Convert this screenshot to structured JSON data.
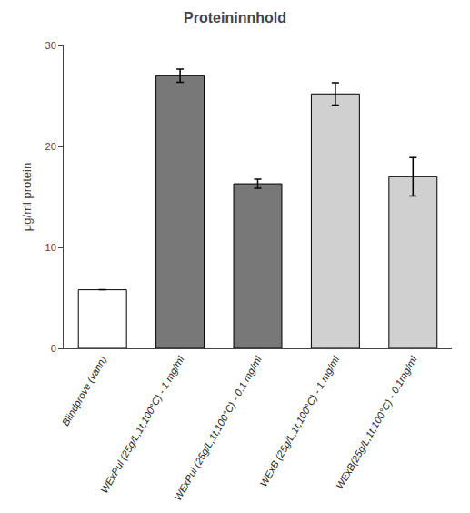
{
  "chart_data": {
    "type": "bar",
    "title": "Proteininnhold",
    "ylabel": "μg/ml protein",
    "categories": [
      "Blindprove (vann)",
      "WExPul (25g/L,1t,100°C) - 1 mg/ml",
      "WExPul (25g/L,1t,100°C) - 0.1 mg/ml",
      "WExB (25g/L,1t,100°C) - 1 mg/ml",
      "WExB(25g/L,1t,100°C) - 0.1mg/ml"
    ],
    "values": [
      5.8,
      27.0,
      16.3,
      25.2,
      17.0
    ],
    "errors": [
      0.0,
      0.65,
      0.45,
      1.1,
      1.9
    ],
    "colors": [
      "#ffffff",
      "#787878",
      "#787878",
      "#d0d0d0",
      "#d0d0d0"
    ],
    "ylim": [
      0,
      30
    ],
    "yticks": [
      0,
      10,
      20,
      30
    ],
    "grid": false
  }
}
